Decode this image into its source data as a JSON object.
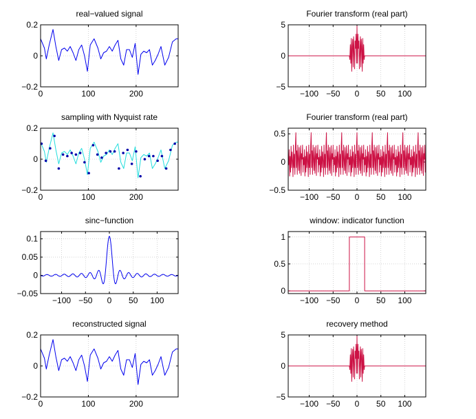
{
  "chart_data": [
    {
      "id": "real-valued-signal",
      "type": "line",
      "title": "real−valued signal",
      "xlim": [
        0,
        288
      ],
      "ylim": [
        -0.2,
        0.2
      ],
      "xticks": [
        0,
        100,
        200
      ],
      "xtick_labels": [
        "0",
        "100",
        "200"
      ],
      "yticks": [
        -0.2,
        0,
        0.2
      ],
      "ytick_labels": [
        "−0.2",
        "0",
        "0.2"
      ],
      "grid": true,
      "series": [
        {
          "color": "#0000ee",
          "style": "line",
          "x": [
            0,
            8,
            12,
            18,
            26,
            32,
            38,
            44,
            50,
            56,
            62,
            68,
            74,
            80,
            86,
            92,
            98,
            104,
            112,
            120,
            126,
            132,
            138,
            144,
            150,
            156,
            162,
            168,
            174,
            180,
            186,
            192,
            198,
            204,
            210,
            216,
            222,
            228,
            234,
            240,
            246,
            252,
            260,
            268,
            276,
            284,
            288
          ],
          "y": [
            0.11,
            0.05,
            -0.02,
            0.07,
            0.17,
            0.06,
            -0.03,
            0.04,
            0.05,
            0.03,
            0.06,
            0.02,
            -0.03,
            0.04,
            0.07,
            0.0,
            -0.1,
            0.07,
            0.11,
            0.05,
            -0.02,
            0.02,
            0.03,
            0.06,
            0.03,
            0.07,
            0.1,
            -0.02,
            -0.06,
            0.04,
            0.04,
            -0.01,
            0.08,
            -0.12,
            0.01,
            0.03,
            0.02,
            0.04,
            -0.06,
            -0.03,
            0.01,
            0.06,
            -0.06,
            -0.01,
            0.09,
            0.11,
            0.11
          ]
        }
      ]
    },
    {
      "id": "fourier-transform-1",
      "type": "line",
      "title": "Fourier transform (real part)",
      "xlim": [
        -144,
        144
      ],
      "ylim": [
        -5,
        5
      ],
      "xticks": [
        -100,
        -50,
        0,
        50,
        100
      ],
      "xtick_labels": [
        "−100",
        "−50",
        "0",
        "50",
        "100"
      ],
      "yticks": [
        -5,
        0,
        5
      ],
      "ytick_labels": [
        "−5",
        "0",
        "5"
      ],
      "grid": true,
      "series": [
        {
          "color": "#cc1144",
          "style": "line",
          "x": [
            -144,
            -16,
            -15,
            -14,
            -13,
            -12,
            -11,
            -10,
            -9,
            -8,
            -7,
            -6,
            -5,
            -4,
            -3,
            -2,
            -1,
            0,
            1,
            2,
            3,
            4,
            5,
            6,
            7,
            8,
            9,
            10,
            11,
            12,
            13,
            14,
            15,
            16,
            144
          ],
          "y": [
            0,
            0,
            -0.6,
            1.8,
            -1.2,
            2.8,
            -2.5,
            1.5,
            2.7,
            -1.8,
            3.1,
            0.5,
            -2.1,
            2.4,
            1.2,
            3.5,
            -1.2,
            4.8,
            -1.2,
            3.5,
            1.2,
            2.4,
            -2.1,
            0.5,
            3.1,
            -1.8,
            2.7,
            1.5,
            -2.5,
            2.8,
            -1.2,
            1.8,
            -0.6,
            0,
            0
          ]
        }
      ]
    },
    {
      "id": "sampling-nyquist",
      "type": "line",
      "title": "sampling with Nyquist rate",
      "xlim": [
        0,
        288
      ],
      "ylim": [
        -0.2,
        0.2
      ],
      "xticks": [
        0,
        100,
        200
      ],
      "xtick_labels": [
        "0",
        "100",
        "200"
      ],
      "yticks": [
        -0.2,
        0,
        0.2
      ],
      "ytick_labels": [
        "−0.2",
        "0",
        "0.2"
      ],
      "grid": true,
      "series": [
        {
          "color": "#22dddd",
          "style": "line",
          "x": [
            0,
            8,
            12,
            18,
            26,
            32,
            38,
            44,
            50,
            56,
            62,
            68,
            74,
            80,
            86,
            92,
            98,
            104,
            112,
            120,
            126,
            132,
            138,
            144,
            150,
            156,
            162,
            168,
            174,
            180,
            186,
            192,
            198,
            204,
            210,
            216,
            222,
            228,
            234,
            240,
            246,
            252,
            260,
            268,
            276,
            284,
            288
          ],
          "y": [
            0.11,
            0.05,
            -0.02,
            0.07,
            0.17,
            0.06,
            -0.03,
            0.04,
            0.05,
            0.03,
            0.06,
            0.02,
            -0.03,
            0.04,
            0.07,
            0.0,
            -0.1,
            0.07,
            0.11,
            0.05,
            -0.02,
            0.02,
            0.03,
            0.06,
            0.03,
            0.07,
            0.1,
            -0.02,
            -0.06,
            0.04,
            0.04,
            -0.01,
            0.08,
            -0.12,
            0.01,
            0.03,
            0.02,
            0.04,
            -0.06,
            -0.03,
            0.01,
            0.06,
            -0.06,
            -0.01,
            0.09,
            0.11,
            0.11
          ]
        },
        {
          "color": "#0000aa",
          "style": "points",
          "x": [
            2,
            11,
            20,
            29,
            38,
            47,
            56,
            65,
            74,
            83,
            92,
            101,
            110,
            119,
            128,
            137,
            146,
            155,
            164,
            173,
            182,
            191,
            200,
            209,
            218,
            227,
            236,
            245,
            254,
            263,
            272,
            281
          ],
          "y": [
            0.1,
            -0.01,
            0.07,
            0.15,
            -0.06,
            0.03,
            0.02,
            0.04,
            0.03,
            0.04,
            -0.02,
            -0.09,
            0.09,
            0.03,
            0.01,
            0.04,
            0.05,
            0.05,
            -0.06,
            0.04,
            0.06,
            -0.03,
            0.05,
            -0.11,
            0.0,
            0.02,
            0.02,
            -0.01,
            0.02,
            -0.06,
            0.06,
            0.1
          ]
        }
      ]
    },
    {
      "id": "fourier-transform-2",
      "type": "line",
      "title": "Fourier transform (real part)",
      "xlim": [
        -144,
        144
      ],
      "ylim": [
        -0.5,
        0.6
      ],
      "xticks": [
        -100,
        -50,
        0,
        50,
        100
      ],
      "xtick_labels": [
        "−100",
        "−50",
        "0",
        "50",
        "100"
      ],
      "yticks": [
        -0.5,
        0,
        0.5
      ],
      "ytick_labels": [
        "−0.5",
        "0",
        "0.5"
      ],
      "grid": true,
      "series": [
        {
          "color": "#cc1144",
          "style": "line",
          "periodic_pattern": [
            0.52,
            -0.1,
            0.2,
            -0.22,
            0.3,
            0.05,
            -0.15,
            0.26,
            -0.2,
            0.1,
            0.29,
            -0.24,
            0.15,
            0.05,
            0.3,
            -0.18,
            0.08,
            -0.05,
            0.22,
            -0.25,
            0.1,
            -0.18,
            0.28,
            -0.1,
            0.18,
            0.02,
            -0.26,
            0.3,
            -0.1,
            0.14,
            -0.22,
            0.28
          ],
          "period": 32
        }
      ]
    },
    {
      "id": "sinc-function",
      "type": "line",
      "title": "sinc−function",
      "xlim": [
        -144,
        144
      ],
      "ylim": [
        -0.05,
        0.12
      ],
      "xticks": [
        -100,
        -50,
        0,
        50,
        100
      ],
      "xtick_labels": [
        "−100",
        "−50",
        "0",
        "50",
        "100"
      ],
      "yticks": [
        -0.05,
        0,
        0.05,
        0.1
      ],
      "ytick_labels": [
        "−0.05",
        "0",
        "0.05",
        "0.1"
      ],
      "grid": true,
      "series": [
        {
          "color": "#0000ee",
          "style": "line",
          "function": "sinc",
          "peak": 0.107,
          "zero_spacing": 9
        }
      ]
    },
    {
      "id": "window-indicator",
      "type": "line",
      "title": "window: indicator function",
      "xlim": [
        -144,
        144
      ],
      "ylim": [
        -0.05,
        1.1
      ],
      "xticks": [
        -100,
        -50,
        0,
        50,
        100
      ],
      "xtick_labels": [
        "−100",
        "−50",
        "0",
        "50",
        "100"
      ],
      "yticks": [
        0,
        0.5,
        1
      ],
      "ytick_labels": [
        "0",
        "0.5",
        "1"
      ],
      "grid": true,
      "series": [
        {
          "color": "#cc1144",
          "style": "line",
          "x": [
            -144,
            -16,
            -16,
            16,
            16,
            144
          ],
          "y": [
            0,
            0,
            1,
            1,
            0,
            0
          ]
        }
      ]
    },
    {
      "id": "reconstructed-signal",
      "type": "line",
      "title": "reconstructed signal",
      "xlim": [
        0,
        288
      ],
      "ylim": [
        -0.2,
        0.2
      ],
      "xticks": [
        0,
        100,
        200
      ],
      "xtick_labels": [
        "0",
        "100",
        "200"
      ],
      "yticks": [
        -0.2,
        0,
        0.2
      ],
      "ytick_labels": [
        "−0.2",
        "0",
        "0.2"
      ],
      "grid": true,
      "series": [
        {
          "color": "#0000ee",
          "style": "line",
          "x": [
            0,
            8,
            12,
            18,
            26,
            32,
            38,
            44,
            50,
            56,
            62,
            68,
            74,
            80,
            86,
            92,
            98,
            104,
            112,
            120,
            126,
            132,
            138,
            144,
            150,
            156,
            162,
            168,
            174,
            180,
            186,
            192,
            198,
            204,
            210,
            216,
            222,
            228,
            234,
            240,
            246,
            252,
            260,
            268,
            276,
            284,
            288
          ],
          "y": [
            0.11,
            0.05,
            -0.02,
            0.07,
            0.17,
            0.06,
            -0.03,
            0.04,
            0.05,
            0.03,
            0.06,
            0.02,
            -0.03,
            0.04,
            0.07,
            0.0,
            -0.1,
            0.07,
            0.11,
            0.05,
            -0.02,
            0.02,
            0.03,
            0.06,
            0.03,
            0.07,
            0.1,
            -0.02,
            -0.06,
            0.04,
            0.04,
            -0.01,
            0.08,
            -0.12,
            0.01,
            0.03,
            0.02,
            0.04,
            -0.06,
            -0.03,
            0.01,
            0.06,
            -0.06,
            -0.01,
            0.09,
            0.11,
            0.11
          ]
        }
      ]
    },
    {
      "id": "recovery-method",
      "type": "line",
      "title": "recovery method",
      "xlim": [
        -144,
        144
      ],
      "ylim": [
        -5,
        5
      ],
      "xticks": [
        -100,
        -50,
        0,
        50,
        100
      ],
      "xtick_labels": [
        "−100",
        "−50",
        "0",
        "50",
        "100"
      ],
      "yticks": [
        -5,
        0,
        5
      ],
      "ytick_labels": [
        "−5",
        "0",
        "5"
      ],
      "grid": true,
      "series": [
        {
          "color": "#cc1144",
          "style": "line",
          "x": [
            -144,
            -16,
            -15,
            -14,
            -13,
            -12,
            -11,
            -10,
            -9,
            -8,
            -7,
            -6,
            -5,
            -4,
            -3,
            -2,
            -1,
            0,
            1,
            2,
            3,
            4,
            5,
            6,
            7,
            8,
            9,
            10,
            11,
            12,
            13,
            14,
            15,
            16,
            144
          ],
          "y": [
            0,
            0,
            -0.6,
            1.8,
            -1.2,
            2.8,
            -2.5,
            1.5,
            2.7,
            -1.8,
            3.1,
            0.5,
            -2.1,
            2.4,
            1.2,
            3.5,
            -1.2,
            4.8,
            -1.2,
            3.5,
            1.2,
            2.4,
            -2.1,
            0.5,
            3.1,
            -1.8,
            2.7,
            1.5,
            -2.5,
            2.8,
            -1.2,
            1.8,
            -0.6,
            0,
            0
          ]
        }
      ]
    }
  ]
}
